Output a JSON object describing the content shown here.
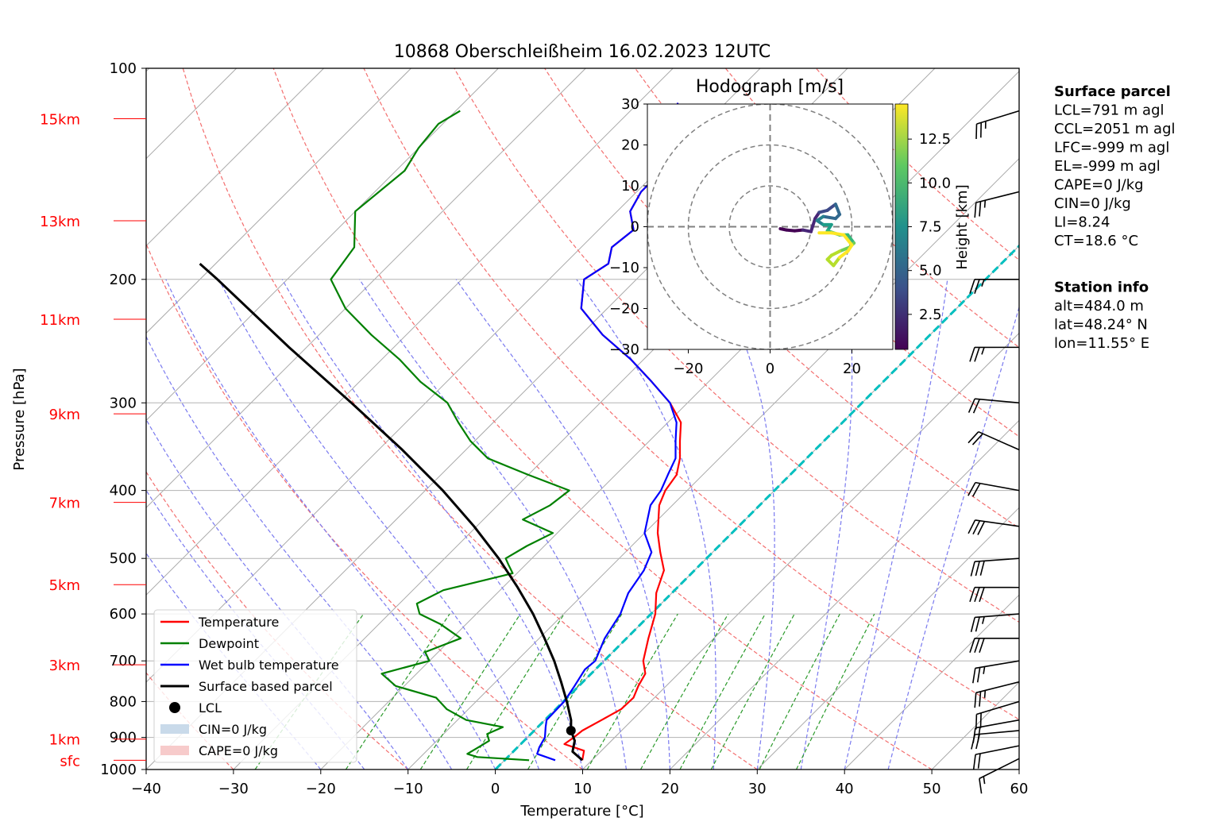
{
  "chart_data": {
    "type": "line",
    "title": "10868 Oberschleißheim 16.02.2023 12UTC",
    "xlabel": "Temperature [°C]",
    "ylabel": "Pressure [hPa]",
    "xlim": [
      -40,
      60
    ],
    "ylim": [
      1000,
      100
    ],
    "y_scale": "log",
    "x_ticks": [
      "−40",
      "−30",
      "−20",
      "−10",
      "0",
      "10",
      "20",
      "30",
      "40",
      "50",
      "60"
    ],
    "y_ticks": [
      "100",
      "200",
      "300",
      "400",
      "500",
      "600",
      "700",
      "800",
      "900",
      "1000"
    ],
    "height_ticks": [
      {
        "p": 970,
        "label": "sfc"
      },
      {
        "p": 905,
        "label": "1km"
      },
      {
        "p": 709,
        "label": "3km"
      },
      {
        "p": 545,
        "label": "5km"
      },
      {
        "p": 416,
        "label": "7km"
      },
      {
        "p": 311,
        "label": "9km"
      },
      {
        "p": 228,
        "label": "11km"
      },
      {
        "p": 165,
        "label": "13km"
      },
      {
        "p": 118,
        "label": "15km"
      }
    ],
    "series": [
      {
        "name": "Temperature",
        "color": "#ff0000",
        "points": [
          [
            970,
            8.9
          ],
          [
            940,
            8.0
          ],
          [
            920,
            5.0
          ],
          [
            900,
            5.3
          ],
          [
            880,
            5.5
          ],
          [
            850,
            6.5
          ],
          [
            820,
            7.5
          ],
          [
            790,
            7.6
          ],
          [
            760,
            6.8
          ],
          [
            730,
            6.2
          ],
          [
            700,
            4.5
          ],
          [
            650,
            2.5
          ],
          [
            600,
            0.5
          ],
          [
            560,
            -1.8
          ],
          [
            520,
            -3.5
          ],
          [
            490,
            -6.0
          ],
          [
            460,
            -8.5
          ],
          [
            420,
            -11.5
          ],
          [
            400,
            -12.5
          ],
          [
            380,
            -13.0
          ],
          [
            360,
            -14.5
          ],
          [
            340,
            -16.5
          ],
          [
            320,
            -18.5
          ],
          [
            300,
            -22.0
          ],
          [
            280,
            -26.5
          ],
          [
            260,
            -31.5
          ],
          [
            240,
            -37.5
          ],
          [
            220,
            -43.0
          ],
          [
            200,
            -46.0
          ],
          [
            190,
            -45.0
          ],
          [
            180,
            -46.5
          ],
          [
            170,
            -46.0
          ],
          [
            160,
            -48.5
          ],
          [
            150,
            -49.5
          ],
          [
            140,
            -49.5
          ],
          [
            130,
            -51.5
          ],
          [
            120,
            -53.5
          ],
          [
            112,
            -55.5
          ]
        ]
      },
      {
        "name": "Dewpoint",
        "color": "#008000",
        "points": [
          [
            970,
            2.8
          ],
          [
            960,
            -3.5
          ],
          [
            950,
            -5.0
          ],
          [
            930,
            -4.5
          ],
          [
            910,
            -4.0
          ],
          [
            890,
            -5.0
          ],
          [
            870,
            -4.0
          ],
          [
            850,
            -9.0
          ],
          [
            820,
            -12.5
          ],
          [
            790,
            -15.0
          ],
          [
            760,
            -21.0
          ],
          [
            730,
            -24.0
          ],
          [
            700,
            -20.0
          ],
          [
            680,
            -21.5
          ],
          [
            650,
            -19.0
          ],
          [
            620,
            -23.0
          ],
          [
            600,
            -26.5
          ],
          [
            580,
            -28.0
          ],
          [
            555,
            -26.5
          ],
          [
            525,
            -20.5
          ],
          [
            510,
            -22.0
          ],
          [
            500,
            -23.0
          ],
          [
            480,
            -22.0
          ],
          [
            460,
            -20.5
          ],
          [
            440,
            -25.5
          ],
          [
            420,
            -24.0
          ],
          [
            400,
            -23.5
          ],
          [
            380,
            -30.0
          ],
          [
            360,
            -36.5
          ],
          [
            340,
            -40.5
          ],
          [
            320,
            -44.0
          ],
          [
            300,
            -47.5
          ],
          [
            280,
            -53.0
          ],
          [
            260,
            -58.0
          ],
          [
            240,
            -64.0
          ],
          [
            220,
            -70.0
          ],
          [
            200,
            -75.0
          ],
          [
            180,
            -76.0
          ],
          [
            160,
            -80.0
          ],
          [
            140,
            -79.0
          ],
          [
            130,
            -80.0
          ],
          [
            120,
            -80.5
          ],
          [
            115,
            -79.5
          ]
        ]
      },
      {
        "name": "Wet bulb temperature",
        "color": "#0000ff",
        "points": [
          [
            970,
            5.8
          ],
          [
            950,
            3.0
          ],
          [
            930,
            2.5
          ],
          [
            900,
            2.0
          ],
          [
            870,
            0.9
          ],
          [
            850,
            0.2
          ],
          [
            800,
            0.1
          ],
          [
            760,
            -0.5
          ],
          [
            720,
            -1.2
          ],
          [
            700,
            -1.0
          ],
          [
            650,
            -2.5
          ],
          [
            600,
            -3.5
          ],
          [
            560,
            -5.0
          ],
          [
            520,
            -5.8
          ],
          [
            490,
            -7.0
          ],
          [
            460,
            -10.0
          ],
          [
            420,
            -12.5
          ],
          [
            400,
            -13.0
          ],
          [
            380,
            -14.0
          ],
          [
            360,
            -15.0
          ],
          [
            340,
            -17.0
          ],
          [
            320,
            -19.0
          ],
          [
            300,
            -22.0
          ],
          [
            280,
            -26.5
          ],
          [
            260,
            -31.5
          ],
          [
            240,
            -37.5
          ],
          [
            220,
            -43.0
          ],
          [
            200,
            -46.0
          ],
          [
            190,
            -45.0
          ],
          [
            180,
            -46.5
          ],
          [
            170,
            -46.0
          ],
          [
            160,
            -48.5
          ],
          [
            150,
            -49.5
          ],
          [
            140,
            -49.5
          ],
          [
            130,
            -51.5
          ],
          [
            120,
            -53.5
          ],
          [
            112,
            -55.5
          ]
        ]
      },
      {
        "name": "Surface based parcel",
        "color": "#000000",
        "points": [
          [
            970,
            8.9
          ],
          [
            943,
            6.8
          ],
          [
            910,
            5.8
          ],
          [
            880,
            4.2
          ],
          [
            850,
            3.0
          ],
          [
            800,
            0.4
          ],
          [
            750,
            -2.5
          ],
          [
            700,
            -5.7
          ],
          [
            650,
            -9.4
          ],
          [
            600,
            -13.5
          ],
          [
            550,
            -18.3
          ],
          [
            500,
            -23.8
          ],
          [
            450,
            -30.3
          ],
          [
            400,
            -38.0
          ],
          [
            350,
            -47.3
          ],
          [
            300,
            -58.5
          ],
          [
            250,
            -72.0
          ],
          [
            200,
            -88.0
          ],
          [
            190,
            -91.8
          ]
        ]
      }
    ],
    "lcl": {
      "name": "LCL",
      "p": 880,
      "t": 4.2,
      "color": "#000000"
    },
    "legend_placement": "lower-left",
    "legend": [
      {
        "label": "Temperature",
        "kind": "line",
        "color": "#ff0000"
      },
      {
        "label": "Dewpoint",
        "kind": "line",
        "color": "#008000"
      },
      {
        "label": "Wet bulb temperature",
        "kind": "line",
        "color": "#0000ff"
      },
      {
        "label": "Surface based parcel",
        "kind": "line",
        "color": "#000000"
      },
      {
        "label": "LCL",
        "kind": "dot",
        "color": "#000000"
      },
      {
        "label": "CIN=0 J/kg",
        "kind": "patch",
        "color": "#c9daea"
      },
      {
        "label": "CAPE=0 J/kg",
        "kind": "patch",
        "color": "#f7cbcb"
      }
    ],
    "wind_barbs": [
      {
        "p": 965,
        "u": 6,
        "v": 3
      },
      {
        "p": 925,
        "u": 10,
        "v": 2
      },
      {
        "p": 880,
        "u": 11,
        "v": 1
      },
      {
        "p": 850,
        "u": 11,
        "v": 2
      },
      {
        "p": 800,
        "u": 10,
        "v": 3
      },
      {
        "p": 750,
        "u": 12,
        "v": 3
      },
      {
        "p": 700,
        "u": 12,
        "v": 2
      },
      {
        "p": 650,
        "u": 14,
        "v": 0
      },
      {
        "p": 600,
        "u": 13,
        "v": 1
      },
      {
        "p": 550,
        "u": 14,
        "v": 0
      },
      {
        "p": 500,
        "u": 14,
        "v": 1
      },
      {
        "p": 450,
        "u": 14,
        "v": -2
      },
      {
        "p": 400,
        "u": 11,
        "v": -2
      },
      {
        "p": 350,
        "u": 9,
        "v": -4
      },
      {
        "p": 300,
        "u": 11,
        "v": -1
      },
      {
        "p": 250,
        "u": 12,
        "v": 0
      },
      {
        "p": 200,
        "u": 13,
        "v": 0
      },
      {
        "p": 150,
        "u": 12,
        "v": 3
      },
      {
        "p": 115,
        "u": 13,
        "v": 4
      }
    ],
    "hodograph": {
      "title": "Hodograph [m/s]",
      "xlim": [
        -30,
        30
      ],
      "ylim": [
        -30,
        30
      ],
      "x_ticks": [
        "−20",
        "0",
        "20"
      ],
      "y_ticks": [
        "30",
        "20",
        "10",
        "0",
        "−10",
        "−20",
        "−30"
      ],
      "rings": [
        10,
        20,
        30
      ],
      "colorbar_label": "Height [km]",
      "colorbar_ticks": [
        "2.5",
        "5.0",
        "7.5",
        "10.0",
        "12.5"
      ],
      "colorbar_range": [
        0.5,
        14.5
      ],
      "points": [
        [
          2.5,
          -0.5,
          0.5
        ],
        [
          4.0,
          -0.8,
          0.9
        ],
        [
          6.0,
          -1.0,
          1.3
        ],
        [
          8.0,
          -0.8,
          1.7
        ],
        [
          10.0,
          -1.2,
          2.1
        ],
        [
          11.0,
          2.0,
          2.6
        ],
        [
          12.0,
          3.5,
          3.2
        ],
        [
          14.0,
          4.0,
          3.8
        ],
        [
          16.0,
          5.5,
          4.4
        ],
        [
          17.0,
          3.0,
          5.0
        ],
        [
          16.0,
          2.0,
          5.5
        ],
        [
          13.0,
          2.5,
          6.0
        ],
        [
          11.5,
          1.5,
          6.6
        ],
        [
          13.0,
          0.5,
          7.2
        ],
        [
          15.0,
          0.5,
          7.8
        ],
        [
          14.0,
          -1.0,
          8.4
        ],
        [
          17.0,
          -2.0,
          9.0
        ],
        [
          19.0,
          -2.0,
          9.6
        ],
        [
          20.5,
          -4.0,
          10.2
        ],
        [
          19.5,
          -5.0,
          10.8
        ],
        [
          17.0,
          -6.0,
          11.4
        ],
        [
          15.0,
          -7.0,
          11.8
        ],
        [
          14.0,
          -8.0,
          12.2
        ],
        [
          15.5,
          -9.5,
          12.6
        ],
        [
          17.0,
          -7.5,
          13.0
        ],
        [
          19.0,
          -6.0,
          13.4
        ],
        [
          20.0,
          -4.5,
          13.8
        ],
        [
          18.0,
          -2.0,
          14.1
        ],
        [
          15.0,
          -1.5,
          14.3
        ],
        [
          12.0,
          -1.5,
          14.5
        ]
      ]
    },
    "side_panel": [
      {
        "heading": "Surface parcel",
        "lines": [
          "LCL=791 m agl",
          "CCL=2051 m agl",
          "LFC=-999 m agl",
          "EL=-999 m agl",
          "CAPE=0 J/kg",
          "CIN=0 J/kg",
          "LI=8.24",
          "CT=18.6 °C"
        ]
      },
      {
        "heading": "Station info",
        "lines": [
          "alt=484.0 m",
          "lat=48.24° N",
          "lon=11.55° E"
        ]
      }
    ]
  }
}
